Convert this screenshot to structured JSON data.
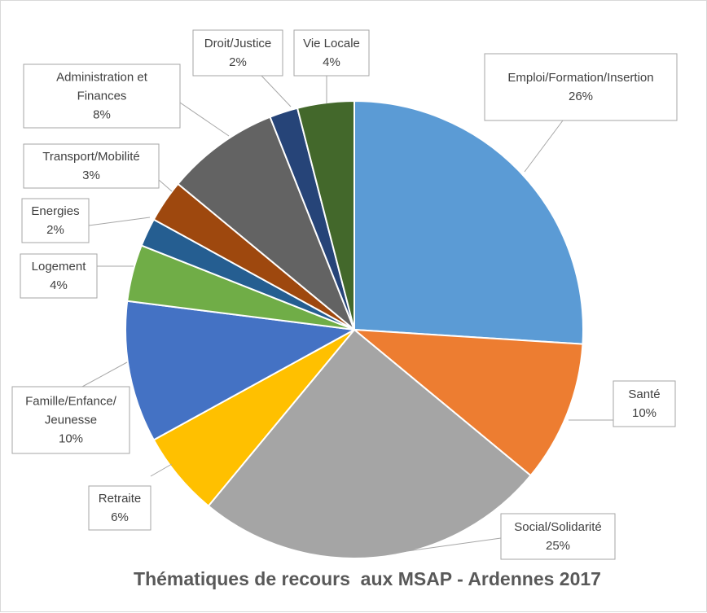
{
  "chart_data": {
    "type": "pie",
    "title": "Thématiques de recours  aux MSAP - Ardennes 2017",
    "slices": [
      {
        "name": "Emploi/Formation/Insertion",
        "label_lines": [
          "Emploi/Formation/Insertion"
        ],
        "percent_label": "26%",
        "value": 26,
        "color": "#5b9bd5"
      },
      {
        "name": "Santé",
        "label_lines": [
          "Santé"
        ],
        "percent_label": "10%",
        "value": 10,
        "color": "#ed7d31"
      },
      {
        "name": "Social/Solidarité",
        "label_lines": [
          "Social/Solidarité"
        ],
        "percent_label": "25%",
        "value": 25,
        "color": "#a5a5a5"
      },
      {
        "name": "Retraite",
        "label_lines": [
          "Retraite"
        ],
        "percent_label": "6%",
        "value": 6,
        "color": "#ffc000"
      },
      {
        "name": "Famille/Enfance/Jeunesse",
        "label_lines": [
          "Famille/Enfance/",
          "Jeunesse"
        ],
        "percent_label": "10%",
        "value": 10,
        "color": "#4472c4"
      },
      {
        "name": "Logement",
        "label_lines": [
          "Logement"
        ],
        "percent_label": "4%",
        "value": 4,
        "color": "#70ad47"
      },
      {
        "name": "Energies",
        "label_lines": [
          "Energies"
        ],
        "percent_label": "2%",
        "value": 2,
        "color": "#255e91"
      },
      {
        "name": "Transport/Mobilité",
        "label_lines": [
          "Transport/Mobilité"
        ],
        "percent_label": "3%",
        "value": 3,
        "color": "#9e480e"
      },
      {
        "name": "Administration et Finances",
        "label_lines": [
          "Administration et",
          "Finances"
        ],
        "percent_label": "8%",
        "value": 8,
        "color": "#636363"
      },
      {
        "name": "Droit/Justice",
        "label_lines": [
          "Droit/Justice"
        ],
        "percent_label": "2%",
        "value": 2,
        "color": "#264478"
      },
      {
        "name": "Vie Locale",
        "label_lines": [
          "Vie Locale"
        ],
        "percent_label": "4%",
        "value": 4,
        "color": "#43682b"
      }
    ],
    "start": "12 o'clock",
    "direction": "clockwise",
    "legend": "none (data callouts)"
  }
}
